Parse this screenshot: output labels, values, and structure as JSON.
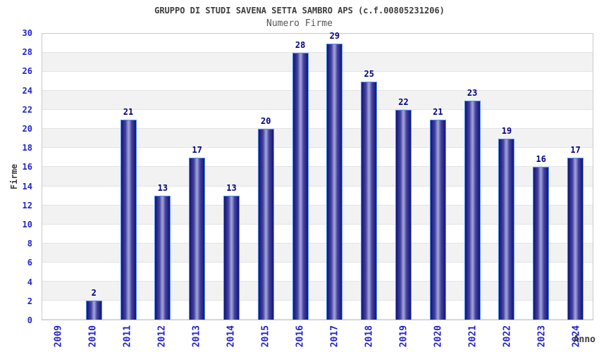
{
  "chart_data": {
    "type": "bar",
    "title": "GRUPPO DI STUDI SAVENA SETTA SAMBRO APS (c.f.00805231206)",
    "subtitle": "Numero Firme",
    "categories": [
      "2009",
      "2010",
      "2011",
      "2012",
      "2013",
      "2014",
      "2015",
      "2016",
      "2017",
      "2018",
      "2019",
      "2020",
      "2021",
      "2022",
      "2023",
      "2024"
    ],
    "values": [
      0,
      2,
      21,
      13,
      17,
      13,
      20,
      28,
      29,
      25,
      22,
      21,
      23,
      19,
      16,
      17
    ],
    "xlabel": "Anno",
    "ylabel": "Firme",
    "ylim": [
      0,
      30
    ],
    "ytick_step": 2,
    "legend": "none",
    "grid": "horizontal gridlines every 2 units over alternating white and light-gray bands",
    "value_labels_shown": true,
    "colors": {
      "bar_edge_dark": "#15156e",
      "bar_center_light": "#9c9cd6",
      "bar_border": "#4f8fea",
      "value_label": "#000080",
      "tick_label": "#2222cc",
      "axis_title": "#3c3c3c",
      "title_text": "#3c3c3c",
      "subtitle_text": "#555555",
      "band_gray": "#f2f2f2",
      "gridline": "#e3e3e3",
      "plot_border": "#c9c9c9",
      "background": "#ffffff"
    }
  }
}
